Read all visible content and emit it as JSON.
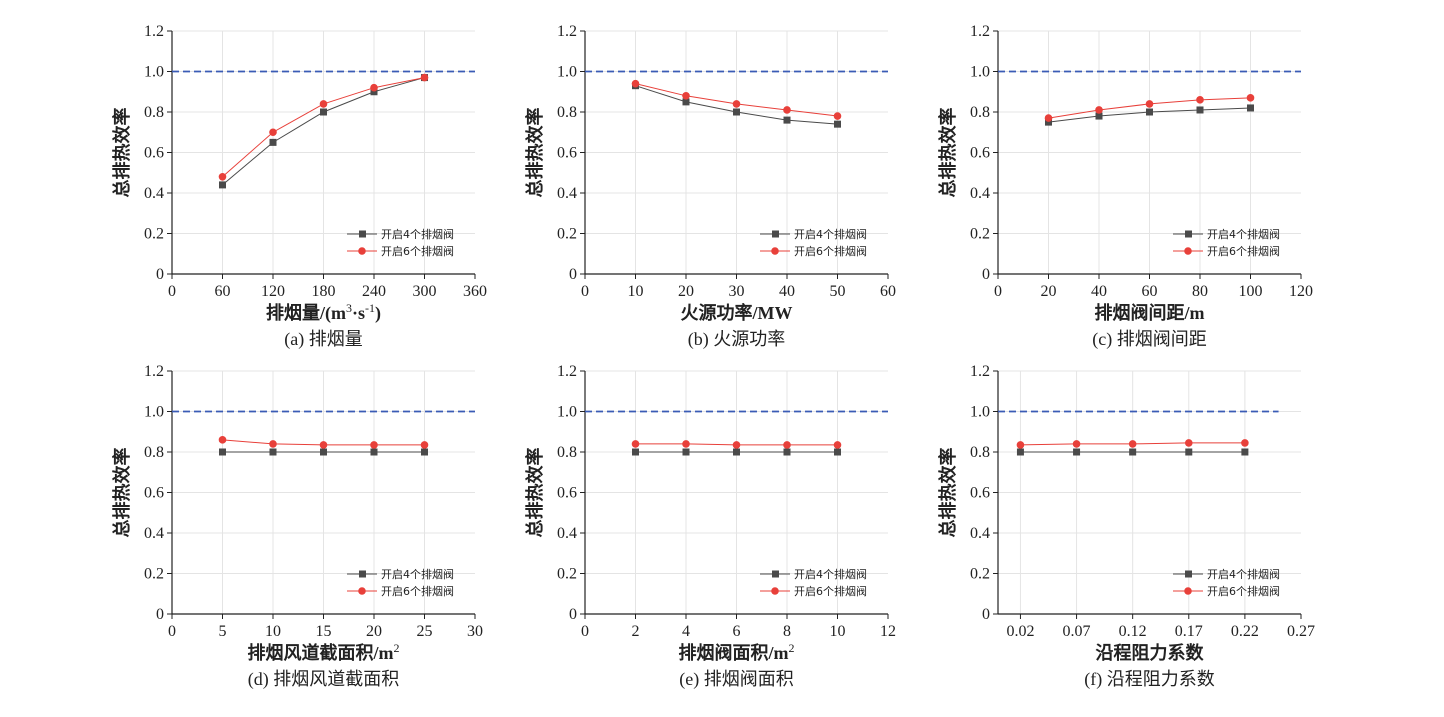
{
  "colors": {
    "series4": "#4a4a4a",
    "series6": "#e8403a",
    "reference": "#3a5bb5",
    "grid": "#e4e4e4",
    "axis": "#222222"
  },
  "chart_data": [
    {
      "type": "line",
      "caption": "(a) 排烟量",
      "xlabel_main": "排烟量/(m",
      "xlabel_sup1": "3",
      "xlabel_mid": "·s",
      "xlabel_sup2": "-1",
      "xlabel_end": ")",
      "ylabel": "总排热效率",
      "xlim": [
        0,
        360
      ],
      "xticks": [
        0,
        60,
        120,
        180,
        240,
        300,
        360
      ],
      "xtick_labels": [
        "0",
        "60",
        "120",
        "180",
        "240",
        "300",
        "360"
      ],
      "ylim": [
        0,
        1.2
      ],
      "yticks": [
        0,
        0.2,
        0.4,
        0.6,
        0.8,
        1.0,
        1.2
      ],
      "ytick_labels": [
        "0",
        "0.2",
        "0.4",
        "0.6",
        "0.8",
        "1.0",
        "1.2"
      ],
      "reference_y": 1.0,
      "x": [
        60,
        120,
        180,
        240,
        300
      ],
      "series": [
        {
          "name": "开启4个排烟阀",
          "marker": "square",
          "values": [
            0.44,
            0.65,
            0.8,
            0.9,
            0.97
          ]
        },
        {
          "name": "开启6个排烟阀",
          "marker": "circle",
          "values": [
            0.48,
            0.7,
            0.84,
            0.92,
            0.97
          ]
        }
      ],
      "grid": true,
      "legend_position": "bottom-right"
    },
    {
      "type": "line",
      "caption": "(b) 火源功率",
      "xlabel_main": "火源功率/MW",
      "ylabel": "总排热效率",
      "xlim": [
        0,
        60
      ],
      "xticks": [
        0,
        10,
        20,
        30,
        40,
        50,
        60
      ],
      "xtick_labels": [
        "0",
        "10",
        "20",
        "30",
        "40",
        "50",
        "60"
      ],
      "ylim": [
        0,
        1.2
      ],
      "yticks": [
        0,
        0.2,
        0.4,
        0.6,
        0.8,
        1.0,
        1.2
      ],
      "ytick_labels": [
        "0",
        "0.2",
        "0.4",
        "0.6",
        "0.8",
        "1.0",
        "1.2"
      ],
      "reference_y": 1.0,
      "x": [
        10,
        20,
        30,
        40,
        50
      ],
      "series": [
        {
          "name": "开启4个排烟阀",
          "marker": "square",
          "values": [
            0.93,
            0.85,
            0.8,
            0.76,
            0.74
          ]
        },
        {
          "name": "开启6个排烟阀",
          "marker": "circle",
          "values": [
            0.94,
            0.88,
            0.84,
            0.81,
            0.78
          ]
        }
      ],
      "grid": true,
      "legend_position": "bottom-right"
    },
    {
      "type": "line",
      "caption": "(c) 排烟阀间距",
      "xlabel_main": "排烟阀间距/m",
      "ylabel": "总排热效率",
      "xlim": [
        0,
        120
      ],
      "xticks": [
        0,
        20,
        40,
        60,
        80,
        100,
        120
      ],
      "xtick_labels": [
        "0",
        "20",
        "40",
        "60",
        "80",
        "100",
        "120"
      ],
      "ylim": [
        0,
        1.2
      ],
      "yticks": [
        0,
        0.2,
        0.4,
        0.6,
        0.8,
        1.0,
        1.2
      ],
      "ytick_labels": [
        "0",
        "0.2",
        "0.4",
        "0.6",
        "0.8",
        "1.0",
        "1.2"
      ],
      "reference_y": 1.0,
      "x": [
        20,
        40,
        60,
        80,
        100
      ],
      "series": [
        {
          "name": "开启4个排烟阀",
          "marker": "square",
          "values": [
            0.75,
            0.78,
            0.8,
            0.81,
            0.82
          ]
        },
        {
          "name": "开启6个排烟阀",
          "marker": "circle",
          "values": [
            0.77,
            0.81,
            0.84,
            0.86,
            0.87
          ]
        }
      ],
      "grid": true,
      "legend_position": "bottom-right"
    },
    {
      "type": "line",
      "caption": "(d) 排烟风道截面积",
      "xlabel_main": "排烟风道截面积/m",
      "xlabel_sup1": "2",
      "ylabel": "总排热效率",
      "xlim": [
        0,
        30
      ],
      "xticks": [
        0,
        5,
        10,
        15,
        20,
        25,
        30
      ],
      "xtick_labels": [
        "0",
        "5",
        "10",
        "15",
        "20",
        "25",
        "30"
      ],
      "ylim": [
        0,
        1.2
      ],
      "yticks": [
        0,
        0.2,
        0.4,
        0.6,
        0.8,
        1.0,
        1.2
      ],
      "ytick_labels": [
        "0",
        "0.2",
        "0.4",
        "0.6",
        "0.8",
        "1.0",
        "1.2"
      ],
      "reference_y": 1.0,
      "x": [
        5,
        10,
        15,
        20,
        25
      ],
      "series": [
        {
          "name": "开启4个排烟阀",
          "marker": "square",
          "values": [
            0.8,
            0.8,
            0.8,
            0.8,
            0.8
          ]
        },
        {
          "name": "开启6个排烟阀",
          "marker": "circle",
          "values": [
            0.86,
            0.84,
            0.835,
            0.835,
            0.835
          ]
        }
      ],
      "grid": true,
      "legend_position": "bottom-right"
    },
    {
      "type": "line",
      "caption": "(e) 排烟阀面积",
      "xlabel_main": "排烟阀面积/m",
      "xlabel_sup1": "2",
      "ylabel": "总排热效率",
      "xlim": [
        0,
        12
      ],
      "xticks": [
        0,
        2,
        4,
        6,
        8,
        10,
        12
      ],
      "xtick_labels": [
        "0",
        "2",
        "4",
        "6",
        "8",
        "10",
        "12"
      ],
      "ylim": [
        0,
        1.2
      ],
      "yticks": [
        0,
        0.2,
        0.4,
        0.6,
        0.8,
        1.0,
        1.2
      ],
      "ytick_labels": [
        "0",
        "0.2",
        "0.4",
        "0.6",
        "0.8",
        "1.0",
        "1.2"
      ],
      "reference_y": 1.0,
      "x": [
        2,
        4,
        6,
        8,
        10
      ],
      "series": [
        {
          "name": "开启4个排烟阀",
          "marker": "square",
          "values": [
            0.8,
            0.8,
            0.8,
            0.8,
            0.8
          ]
        },
        {
          "name": "开启6个排烟阀",
          "marker": "circle",
          "values": [
            0.84,
            0.84,
            0.835,
            0.835,
            0.835
          ]
        }
      ],
      "grid": true,
      "legend_position": "bottom-right"
    },
    {
      "type": "line",
      "caption": "(f) 沿程阻力系数",
      "xlabel_main": "沿程阻力系数",
      "ylabel": "总排热效率",
      "xlim": [
        0,
        0.27
      ],
      "xticks": [
        0.02,
        0.07,
        0.12,
        0.17,
        0.22,
        0.27
      ],
      "xtick_labels": [
        "0.02",
        "0.07",
        "0.12",
        "0.17",
        "0.22",
        "0.27"
      ],
      "ylim": [
        0,
        1.2
      ],
      "yticks": [
        0,
        0.2,
        0.4,
        0.6,
        0.8,
        1.0,
        1.2
      ],
      "ytick_labels": [
        "0",
        "0.2",
        "0.4",
        "0.6",
        "0.8",
        "1.0",
        "1.2"
      ],
      "reference_y": 1.0,
      "reference_x_end": 0.25,
      "x": [
        0.02,
        0.07,
        0.12,
        0.17,
        0.22
      ],
      "series": [
        {
          "name": "开启4个排烟阀",
          "marker": "square",
          "values": [
            0.8,
            0.8,
            0.8,
            0.8,
            0.8
          ]
        },
        {
          "name": "开启6个排烟阀",
          "marker": "circle",
          "values": [
            0.835,
            0.84,
            0.84,
            0.845,
            0.845
          ]
        }
      ],
      "grid": true,
      "legend_position": "bottom-right"
    }
  ]
}
